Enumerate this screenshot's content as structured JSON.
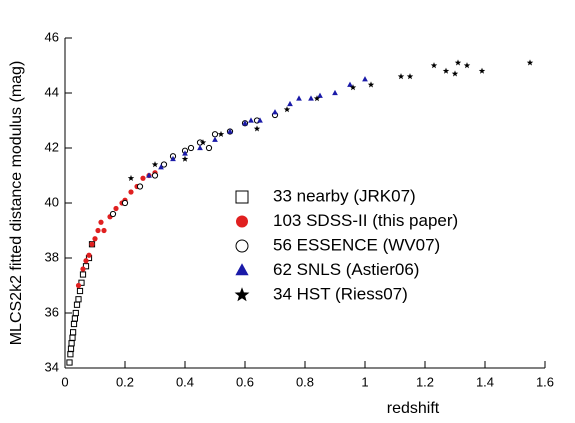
{
  "chart_data": {
    "type": "scatter",
    "x_label": "redshift",
    "y_label": "MLCS2k2 fitted distance modulus (mag)",
    "xlim": [
      0,
      1.6
    ],
    "ylim": [
      34,
      46
    ],
    "xticks": [
      0,
      0.2,
      0.4,
      0.6,
      0.8,
      1,
      1.2,
      1.4,
      1.6
    ],
    "yticks": [
      34,
      36,
      38,
      40,
      42,
      44,
      46
    ],
    "series": [
      {
        "name": "33  nearby (JRK07)",
        "color": "#000000",
        "marker": "open-square",
        "text_color": "#000000",
        "x": [
          0.015,
          0.018,
          0.02,
          0.022,
          0.025,
          0.027,
          0.03,
          0.033,
          0.036,
          0.04,
          0.045,
          0.05,
          0.055,
          0.06,
          0.07,
          0.08,
          0.09
        ],
        "values": [
          34.2,
          34.5,
          34.7,
          34.9,
          35.1,
          35.3,
          35.6,
          35.8,
          36.0,
          36.3,
          36.5,
          36.8,
          37.1,
          37.4,
          37.7,
          38.0,
          38.5
        ]
      },
      {
        "name": "103  SDSS-II (this paper)",
        "color": "#e02020",
        "marker": "filled-circle",
        "text_color": "#e02020",
        "x": [
          0.045,
          0.06,
          0.07,
          0.08,
          0.09,
          0.1,
          0.11,
          0.12,
          0.13,
          0.15,
          0.17,
          0.19,
          0.2,
          0.22,
          0.24,
          0.26,
          0.28,
          0.3,
          0.33,
          0.36
        ],
        "values": [
          37.0,
          37.6,
          37.9,
          38.1,
          38.5,
          38.7,
          39.0,
          39.3,
          39.0,
          39.5,
          39.8,
          40.0,
          40.1,
          40.4,
          40.6,
          40.9,
          41.0,
          41.1,
          41.4,
          41.7
        ]
      },
      {
        "name": "56  ESSENCE (WV07)",
        "color": "#000000",
        "marker": "open-circle",
        "text_color": "#000000",
        "x": [
          0.16,
          0.2,
          0.25,
          0.3,
          0.33,
          0.36,
          0.4,
          0.42,
          0.45,
          0.48,
          0.5,
          0.55,
          0.6,
          0.64,
          0.7
        ],
        "values": [
          39.6,
          40.0,
          40.6,
          41.0,
          41.4,
          41.7,
          41.9,
          42.0,
          42.2,
          42.0,
          42.5,
          42.6,
          42.9,
          43.0,
          43.2
        ]
      },
      {
        "name": "62  SNLS (Astier06)",
        "color": "#1a1aa8",
        "marker": "filled-triangle",
        "text_color": "#1a1aa8",
        "x": [
          0.28,
          0.32,
          0.36,
          0.4,
          0.45,
          0.5,
          0.55,
          0.6,
          0.62,
          0.65,
          0.7,
          0.75,
          0.78,
          0.82,
          0.85,
          0.9,
          0.95,
          1.0
        ],
        "values": [
          41.0,
          41.3,
          41.6,
          41.8,
          42.0,
          42.3,
          42.6,
          42.9,
          43.0,
          43.0,
          43.3,
          43.6,
          43.8,
          43.8,
          43.9,
          44.0,
          44.3,
          44.5
        ]
      },
      {
        "name": "34  HST (Riess07)",
        "color": "#000000",
        "marker": "star",
        "text_color": "#000000",
        "x": [
          0.22,
          0.3,
          0.4,
          0.46,
          0.52,
          0.64,
          0.74,
          0.84,
          0.96,
          1.02,
          1.12,
          1.15,
          1.23,
          1.27,
          1.3,
          1.31,
          1.34,
          1.39,
          1.55
        ],
        "values": [
          40.9,
          41.4,
          41.6,
          42.2,
          42.5,
          42.7,
          43.4,
          43.8,
          44.2,
          44.3,
          44.6,
          44.6,
          45.0,
          44.8,
          44.7,
          45.1,
          45.0,
          44.8,
          45.1
        ]
      }
    ]
  }
}
